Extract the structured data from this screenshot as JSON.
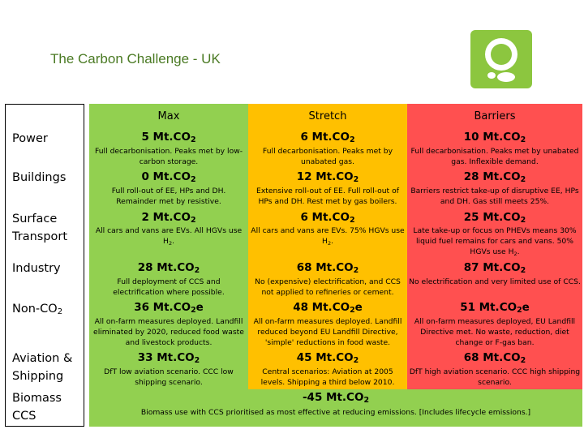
{
  "title": "The Carbon Challenge - UK",
  "colors": {
    "max": "#92d050",
    "stretch": "#ffc000",
    "barriers": "#ff5050",
    "title": "#4a7a23"
  },
  "logo": "green-leaf-logo",
  "columns": {
    "max": "Max",
    "stretch": "Stretch",
    "barriers": "Barriers"
  },
  "rows": [
    {
      "label": "Power",
      "max": {
        "value": "5 Mt.CO2",
        "desc": "Full decarbonisation. Peaks met by low-carbon storage."
      },
      "stretch": {
        "value": "6 Mt.CO2",
        "desc": "Full decarbonisation. Peaks met by unabated gas."
      },
      "barriers": {
        "value": "10 Mt.CO2",
        "desc": "Full decarbonisation. Peaks met by unabated gas. Inflexible demand."
      }
    },
    {
      "label": "Buildings",
      "max": {
        "value": "0 Mt.CO2",
        "desc": "Full roll-out of EE, HPs and DH. Remainder met by resistive."
      },
      "stretch": {
        "value": "12 Mt.CO2",
        "desc": "Extensive roll-out of EE. Full roll-out of HPs and DH. Rest met by gas boilers."
      },
      "barriers": {
        "value": "28 Mt.CO2",
        "desc": "Barriers restrict take-up of disruptive EE, HPs and DH. Gas still meets 25%."
      }
    },
    {
      "label": "Surface Transport",
      "max": {
        "value": "2 Mt.CO2",
        "desc": "All cars and vans are EVs. All HGVs use H2."
      },
      "stretch": {
        "value": "6 Mt.CO2",
        "desc": "All cars and vans are EVs. 75% HGVs use H2."
      },
      "barriers": {
        "value": "25 Mt.CO2",
        "desc": "Late take-up or focus on PHEVs means 30% liquid fuel remains for cars and vans. 50% HGVs use H2."
      }
    },
    {
      "label": "Industry",
      "max": {
        "value": "28 Mt.CO2",
        "desc": "Full deployment of CCS and electrification where possible."
      },
      "stretch": {
        "value": "68 Mt.CO2",
        "desc": "No (expensive) electrification, and CCS not applied to refineries or cement."
      },
      "barriers": {
        "value": "87 Mt.CO2",
        "desc": "No electrification and very limited use of CCS."
      }
    },
    {
      "label": "Non-CO2",
      "max": {
        "value": "36 Mt.CO2e",
        "desc": "All on-farm measures deployed. Landfill eliminated by 2020, reduced food waste and livestock products."
      },
      "stretch": {
        "value": "48 Mt.CO2e",
        "desc": "All on-farm measures deployed. Landfill reduced beyond EU Landfill Directive, 'simple' reductions in food waste."
      },
      "barriers": {
        "value": "51 Mt.CO2e",
        "desc": "All on-farm measures deployed, EU Landfill Directive met. No waste, reduction, diet change or F-gas ban."
      }
    },
    {
      "label": "Aviation & Shipping",
      "max": {
        "value": "33 Mt.CO2",
        "desc": "DfT low aviation scenario. CCC low shipping scenario."
      },
      "stretch": {
        "value": "45 Mt.CO2",
        "desc": "Central scenarios: Aviation at 2005 levels. Shipping a third below 2010."
      },
      "barriers": {
        "value": "68 Mt.CO2",
        "desc": "DfT high aviation scenario. CCC high shipping scenario."
      }
    }
  ],
  "biomass": {
    "label": "Biomass CCS",
    "value": "-45 Mt.CO2",
    "desc": "Biomass use with CCS prioritised as most effective at reducing emissions. [Includes lifecycle emissions.]"
  }
}
